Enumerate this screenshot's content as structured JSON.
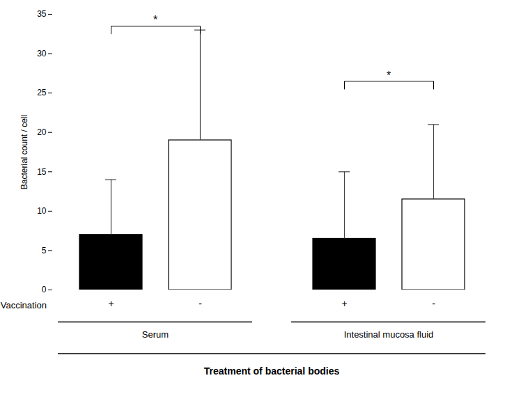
{
  "chart_data": {
    "type": "bar",
    "ylabel": "Bacterial count / cell",
    "xlabel": "Treatment of bacterial bodies",
    "series_label": "Vaccination",
    "categories": [
      "Serum",
      "Intestinal mucosa fluid"
    ],
    "series": [
      {
        "name": "+",
        "color": "#000000",
        "values": [
          7.0,
          6.5
        ],
        "errors_upper": [
          7.0,
          8.5
        ]
      },
      {
        "name": "-",
        "color": "#ffffff",
        "values": [
          19.0,
          11.5
        ],
        "errors_upper": [
          14.0,
          9.5
        ]
      }
    ],
    "significance": [
      {
        "category": "Serum",
        "series": [
          "+",
          "-"
        ],
        "y": 33.5,
        "drop": 1.0,
        "label": "*"
      },
      {
        "category": "Intestinal mucosa fluid",
        "series": [
          "+",
          "-"
        ],
        "y": 26.5,
        "drop": 1.0,
        "label": "*"
      }
    ],
    "ylim": [
      0,
      35
    ],
    "yticks": [
      0,
      5,
      10,
      15,
      20,
      25,
      30,
      35
    ]
  }
}
